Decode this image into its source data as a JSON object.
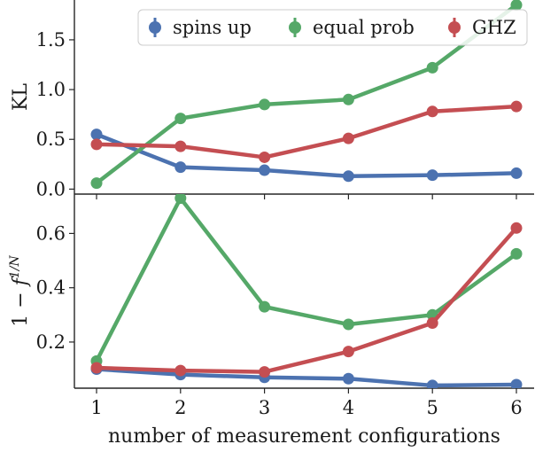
{
  "chart_data": [
    {
      "type": "line",
      "ylabel": "KL",
      "xlabel": "",
      "categories": [
        1,
        2,
        3,
        4,
        5,
        6
      ],
      "ylim": [
        -0.05,
        1.9
      ],
      "yticks": [
        "0.0",
        "0.5",
        "1.0",
        "1.5"
      ],
      "ytick_values": [
        0.0,
        0.5,
        1.0,
        1.5
      ],
      "series": [
        {
          "name": "spins up",
          "color": "#4c72b0",
          "values": [
            0.55,
            0.22,
            0.19,
            0.13,
            0.14,
            0.16
          ]
        },
        {
          "name": "equal prob",
          "color": "#55a868",
          "values": [
            0.06,
            0.71,
            0.85,
            0.9,
            1.22,
            1.85
          ]
        },
        {
          "name": "GHZ",
          "color": "#c44e52",
          "values": [
            0.45,
            0.43,
            0.32,
            0.51,
            0.78,
            0.83
          ]
        }
      ],
      "legend": {
        "position": "top-right",
        "entries": [
          "spins up",
          "equal prob",
          "GHZ"
        ]
      },
      "grid": false
    },
    {
      "type": "line",
      "ylabel": "1 − f^{1/N}",
      "ylabel_parts": {
        "prefix": "1 − ",
        "base": "f",
        "exponent": "1/N"
      },
      "xlabel": "number of measurement configurations",
      "categories": [
        1,
        2,
        3,
        4,
        5,
        6
      ],
      "xticks": [
        "1",
        "2",
        "3",
        "4",
        "5",
        "6"
      ],
      "ylim": [
        0.03,
        0.745
      ],
      "yticks": [
        "0.2",
        "0.4",
        "0.6"
      ],
      "ytick_values": [
        0.2,
        0.4,
        0.6
      ],
      "series": [
        {
          "name": "spins up",
          "color": "#4c72b0",
          "values": [
            0.1,
            0.08,
            0.07,
            0.065,
            0.04,
            0.043
          ]
        },
        {
          "name": "equal prob",
          "color": "#55a868",
          "values": [
            0.13,
            0.73,
            0.33,
            0.265,
            0.3,
            0.525
          ]
        },
        {
          "name": "GHZ",
          "color": "#c44e52",
          "values": [
            0.105,
            0.095,
            0.09,
            0.165,
            0.27,
            0.62
          ]
        }
      ],
      "grid": false
    }
  ]
}
